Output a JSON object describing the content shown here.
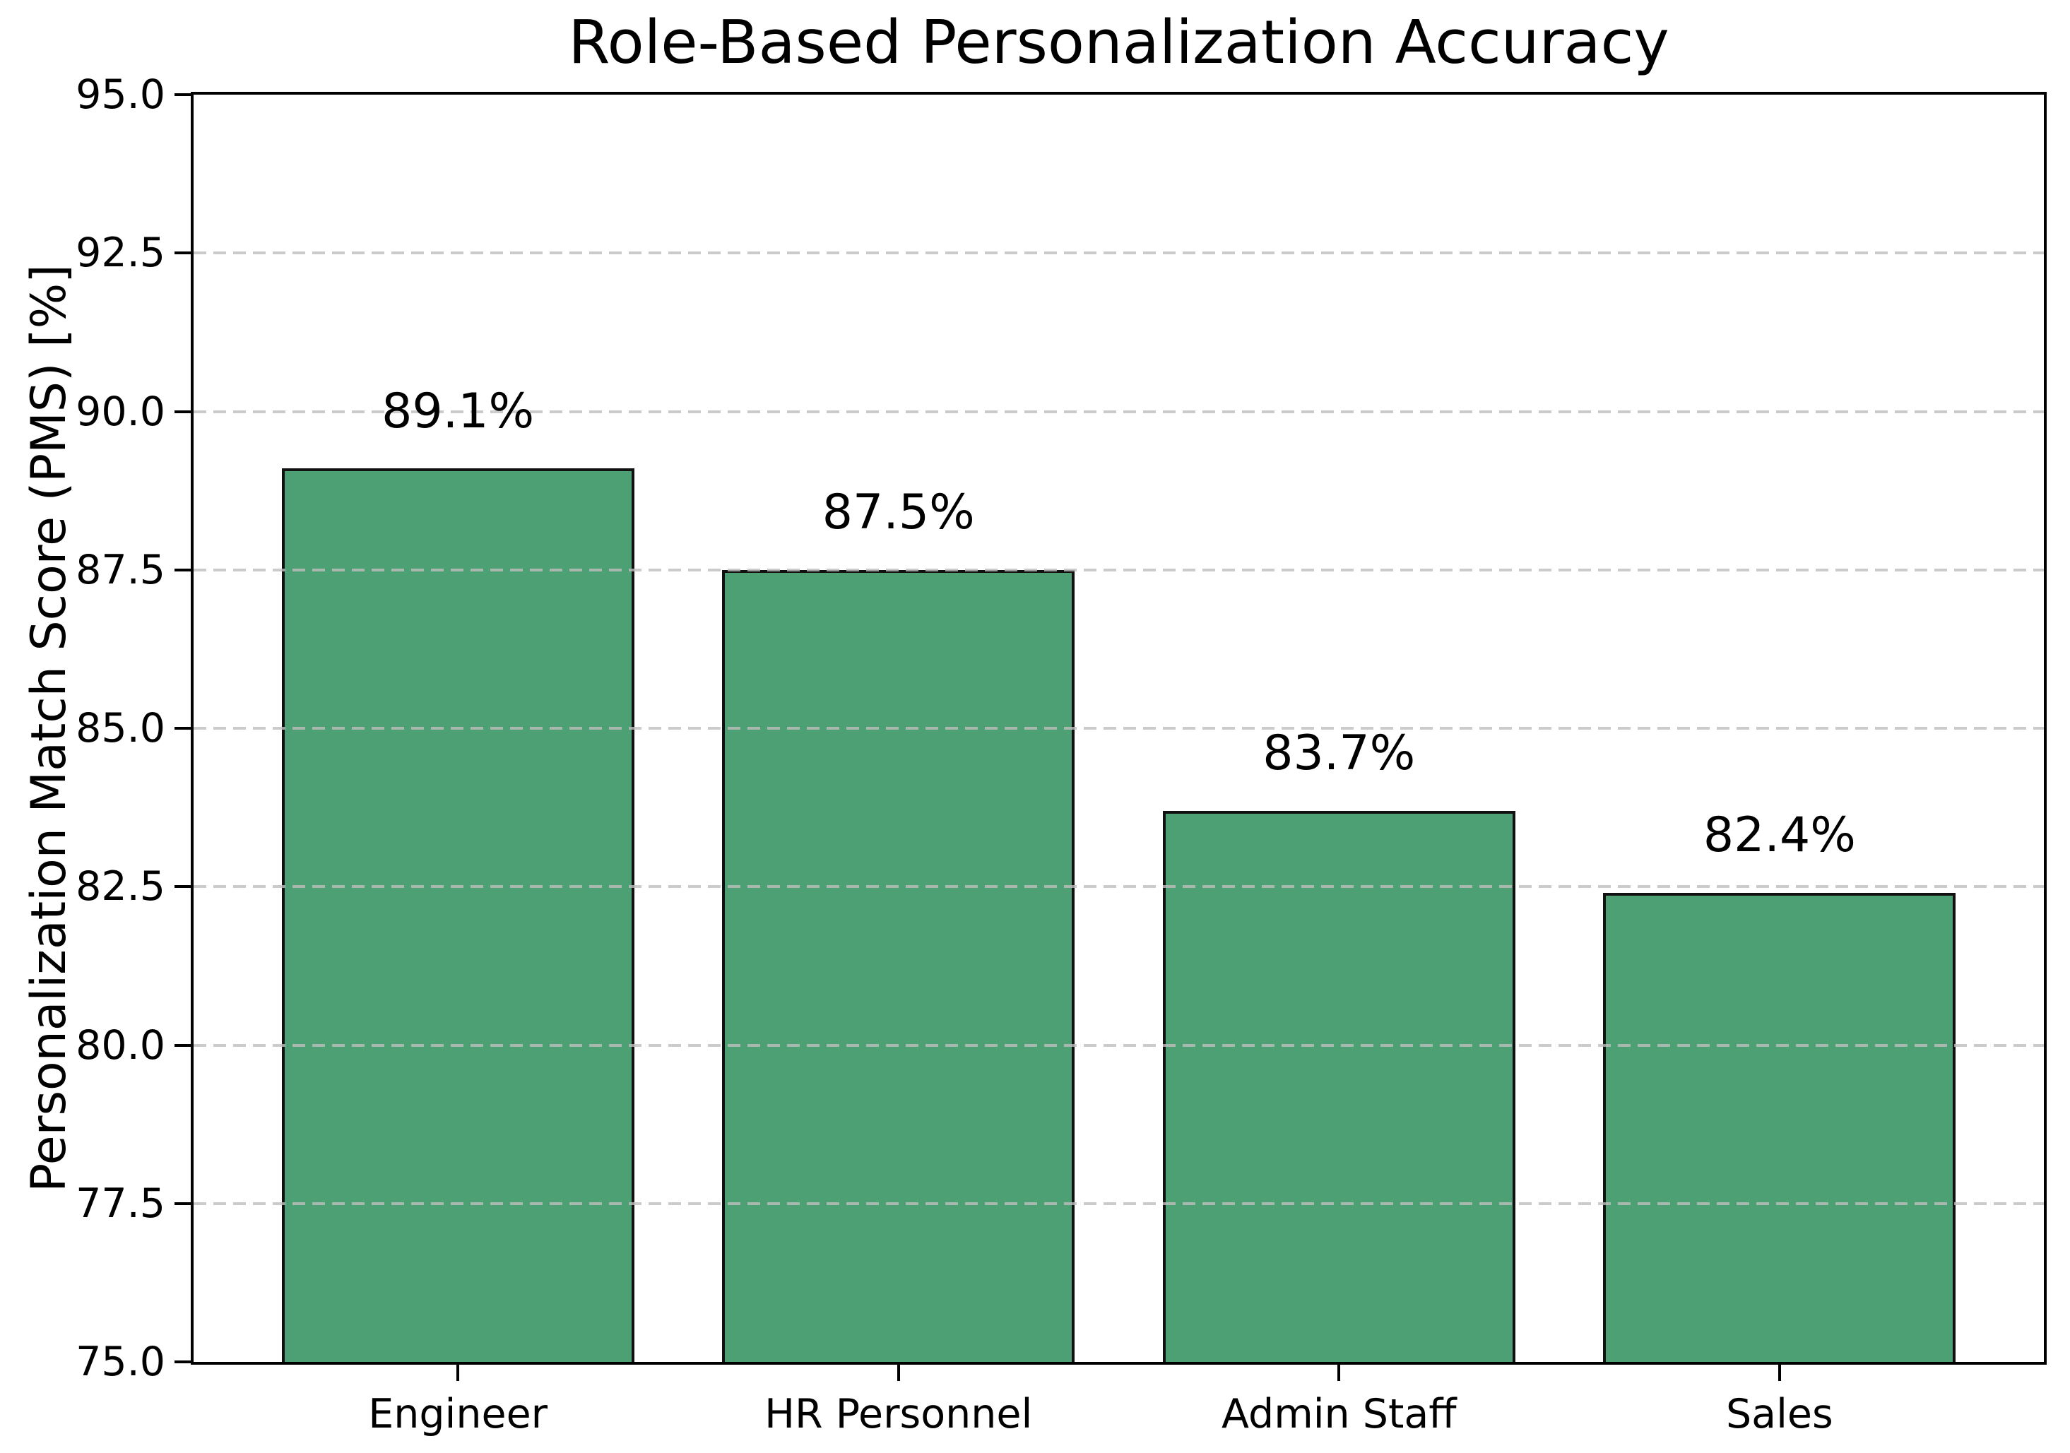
{
  "title": "Role-Based Personalization Accuracy",
  "chart_data": {
    "type": "bar",
    "title": "Role-Based Personalization Accuracy",
    "xlabel": "",
    "ylabel": "Personalization Match Score (PMS) [%]",
    "categories": [
      "Engineer",
      "HR Personnel",
      "Admin Staff",
      "Sales"
    ],
    "values": [
      89.1,
      87.5,
      83.7,
      82.4
    ],
    "bar_labels": [
      "89.1%",
      "87.5%",
      "83.7%",
      "82.4%"
    ],
    "ylim": [
      75.0,
      95.0
    ],
    "yticks": [
      95.0,
      92.5,
      90.0,
      87.5,
      85.0,
      82.5,
      80.0,
      77.5,
      75.0
    ],
    "ytick_labels": [
      "95.0",
      "92.5",
      "90.0",
      "87.5",
      "85.0",
      "82.5",
      "80.0",
      "77.5",
      "75.0"
    ],
    "grid": "horizontal dashed, drawn above bars",
    "legend": "none",
    "colors": {
      "bar_fill": "#4da073",
      "bar_edge": "#111111",
      "grid": "#bebebe",
      "text": "#000000",
      "background": "#ffffff"
    }
  }
}
